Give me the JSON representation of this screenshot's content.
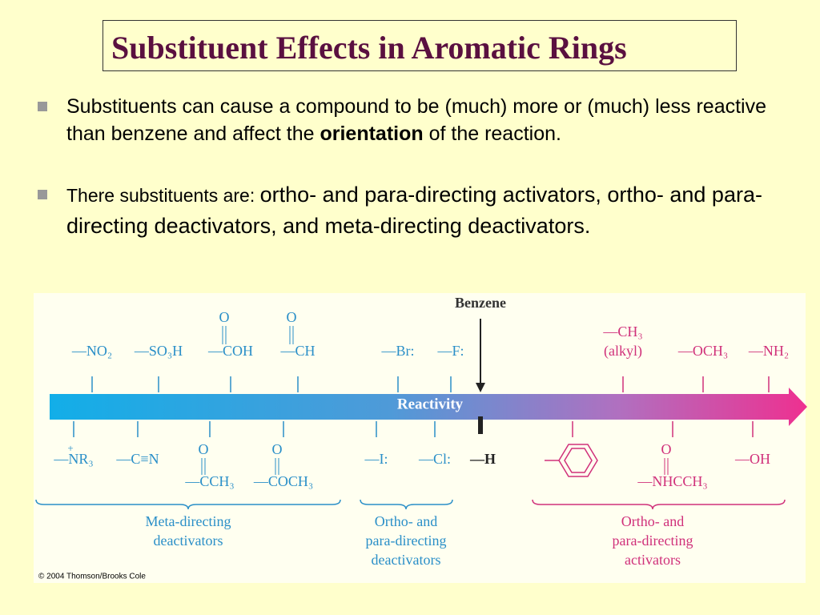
{
  "title": "Substituent Effects in Aromatic Rings",
  "bullets": [
    {
      "parts": [
        "Substituents can cause a compound to be (much) more or (much) less reactive than benzene and affect the ",
        "orientation",
        " of the reaction."
      ]
    },
    {
      "parts": [
        "There substituents are: ",
        "ortho- and para-directing activators, ortho- and para-directing deactivators, and meta-directing deactivators."
      ]
    }
  ],
  "figure": {
    "benzene_label": "Benzene",
    "axis_label": "Reactivity",
    "hydrogen": "—H",
    "top_row": [
      {
        "formula": "—NO₂"
      },
      {
        "formula": "—SO₃H"
      },
      {
        "formula": "—COH",
        "carbonyl": "O"
      },
      {
        "formula": "—CH",
        "carbonyl": "O"
      },
      {
        "formula": "—Br:"
      },
      {
        "formula": "—F:"
      },
      {
        "formula": "—CH₃",
        "note": "(alkyl)"
      },
      {
        "formula": "—OCH₃"
      },
      {
        "formula": "—NH₂"
      }
    ],
    "bottom_row": [
      {
        "formula": "—NR₃",
        "charge": "+"
      },
      {
        "formula": "—C≡N"
      },
      {
        "formula": "—CCH₃",
        "carbonyl": "O"
      },
      {
        "formula": "—COCH₃",
        "carbonyl": "O"
      },
      {
        "formula": "—I:"
      },
      {
        "formula": "—Cl:"
      },
      {
        "formula": "—NHCCH₃",
        "carbonyl": "O"
      },
      {
        "formula": "—OH"
      }
    ],
    "groups": [
      {
        "lines": [
          "Meta-directing",
          "deactivators"
        ]
      },
      {
        "lines": [
          "Ortho- and",
          "para-directing",
          "deactivators"
        ]
      },
      {
        "lines": [
          "Ortho- and",
          "para-directing",
          "activators"
        ]
      }
    ],
    "copyright": "© 2004 Thomson/Brooks Cole"
  }
}
